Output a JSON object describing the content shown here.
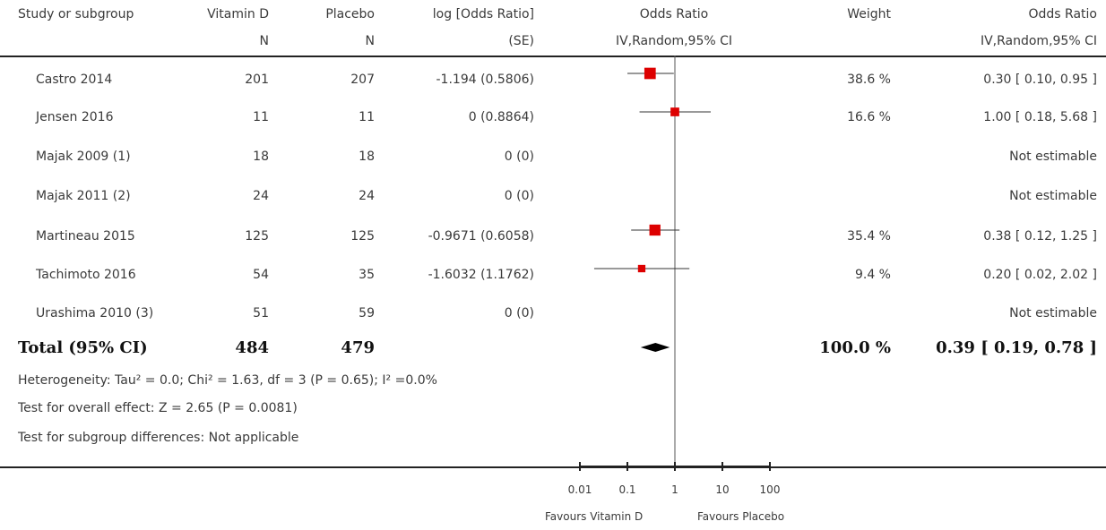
{
  "header": {
    "study": "Study or subgroup",
    "vitd": "Vitamin D",
    "vitd_sub": "N",
    "placebo": "Placebo",
    "placebo_sub": "N",
    "logor": "log [Odds Ratio]",
    "logor_sub": "(SE)",
    "or_plot": "Odds Ratio",
    "or_plot_sub": "IV,Random,95% CI",
    "weight": "Weight",
    "or_text": "Odds Ratio",
    "or_text_sub": "IV,Random,95% CI"
  },
  "rows": [
    {
      "study": "Castro 2014",
      "vitd": "201",
      "placebo": "207",
      "logor": "-1.194 (0.5806)",
      "weight": "38.6 %",
      "or": "0.30 [ 0.10, 0.95 ]"
    },
    {
      "study": "Jensen 2016",
      "vitd": "11",
      "placebo": "11",
      "logor": "0 (0.8864)",
      "weight": "16.6 %",
      "or": "1.00 [ 0.18, 5.68 ]"
    },
    {
      "study": "Majak 2009 (1)",
      "vitd": "18",
      "placebo": "18",
      "logor": "0 (0)",
      "weight": "",
      "or": "Not estimable"
    },
    {
      "study": "Majak 2011 (2)",
      "vitd": "24",
      "placebo": "24",
      "logor": "0 (0)",
      "weight": "",
      "or": "Not estimable"
    },
    {
      "study": "Martineau 2015",
      "vitd": "125",
      "placebo": "125",
      "logor": "-0.9671 (0.6058)",
      "weight": "35.4 %",
      "or": "0.38 [ 0.12, 1.25 ]"
    },
    {
      "study": "Tachimoto 2016",
      "vitd": "54",
      "placebo": "35",
      "logor": "-1.6032 (1.1762)",
      "weight": "9.4 %",
      "or": "0.20 [ 0.02, 2.02 ]"
    },
    {
      "study": "Urashima 2010 (3)",
      "vitd": "51",
      "placebo": "59",
      "logor": "0 (0)",
      "weight": "",
      "or": "Not estimable"
    }
  ],
  "total": {
    "label": "Total (95% CI)",
    "vitd": "484",
    "placebo": "479",
    "weight": "100.0 %",
    "or": "0.39 [ 0.19, 0.78 ]"
  },
  "footer": {
    "heterogeneity": "Heterogeneity: Tau² = 0.0; Chi² = 1.63, df = 3 (P = 0.65); I² =0.0%",
    "overall": "Test for overall effect: Z = 2.65 (P = 0.0081)",
    "subgroup": "Test for subgroup differences: Not applicable"
  },
  "axis": {
    "favours_left": "Favours Vitamin D",
    "favours_right": "Favours Placebo"
  },
  "colors": {
    "marker": "#dd0000",
    "line": "#333333",
    "diamond": "#000000"
  },
  "chart_data": {
    "type": "forest",
    "scale": "log",
    "x_ticks": [
      0.01,
      0.1,
      1,
      10,
      100
    ],
    "x_tick_labels": [
      "0.01",
      "0.1",
      "1",
      "10",
      "100"
    ],
    "null_value": 1,
    "studies": [
      {
        "name": "Castro 2014",
        "or": 0.3,
        "lo": 0.1,
        "hi": 0.95,
        "weight": 38.6
      },
      {
        "name": "Jensen 2016",
        "or": 1.0,
        "lo": 0.18,
        "hi": 5.68,
        "weight": 16.6
      },
      {
        "name": "Majak 2009 (1)",
        "or": null,
        "lo": null,
        "hi": null,
        "weight": null
      },
      {
        "name": "Majak 2011 (2)",
        "or": null,
        "lo": null,
        "hi": null,
        "weight": null
      },
      {
        "name": "Martineau 2015",
        "or": 0.38,
        "lo": 0.12,
        "hi": 1.25,
        "weight": 35.4
      },
      {
        "name": "Tachimoto 2016",
        "or": 0.2,
        "lo": 0.02,
        "hi": 2.02,
        "weight": 9.4
      },
      {
        "name": "Urashima 2010 (3)",
        "or": null,
        "lo": null,
        "hi": null,
        "weight": null
      }
    ],
    "pooled": {
      "or": 0.39,
      "lo": 0.19,
      "hi": 0.78,
      "weight": 100.0
    }
  }
}
